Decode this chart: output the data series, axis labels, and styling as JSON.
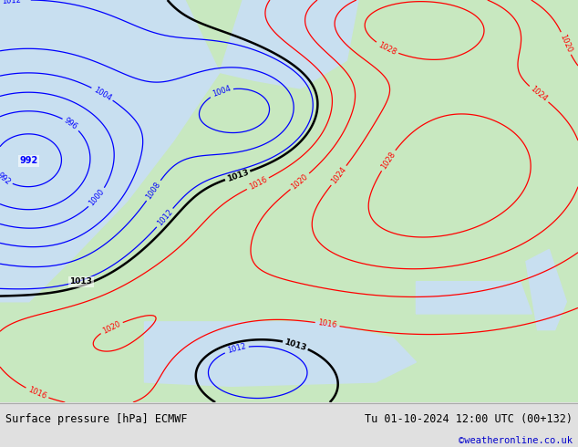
{
  "title_left": "Surface pressure [hPa] ECMWF",
  "title_right": "Tu 01-10-2024 12:00 UTC (00+132)",
  "credit": "©weatheronline.co.uk",
  "sea_color": "#c8dff0",
  "land_color": "#c8e8c0",
  "footer_bg": "#e0e0e0",
  "footer_text_color": "#000000",
  "credit_color": "#0000cc",
  "fig_width": 6.34,
  "fig_height": 4.9,
  "dpi": 100
}
